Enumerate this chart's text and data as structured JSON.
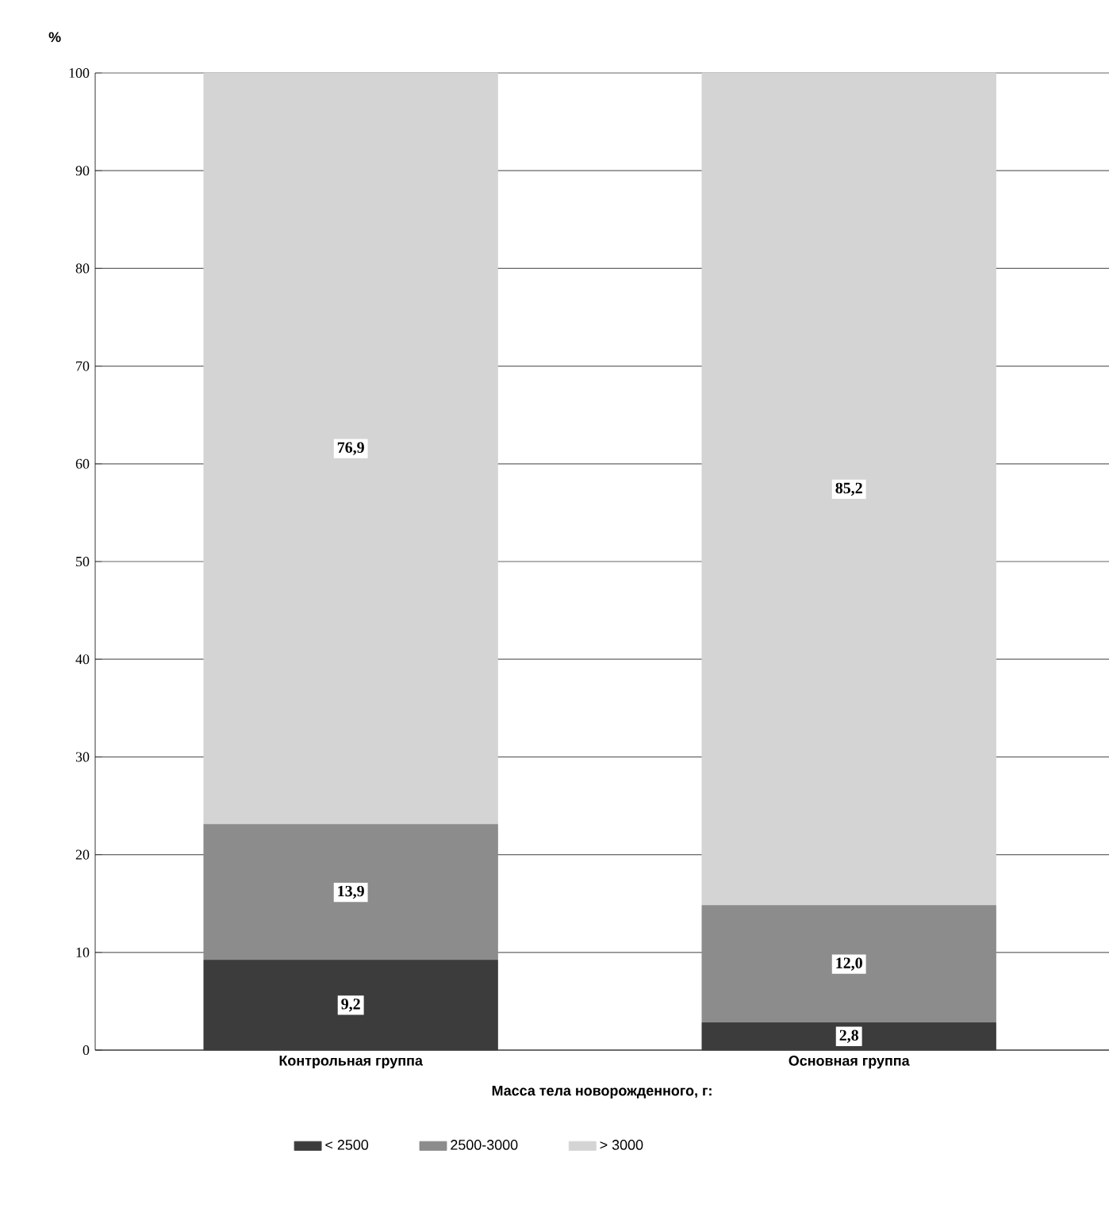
{
  "chart_data": {
    "type": "bar",
    "stacked": true,
    "ylabel": "%",
    "xlabel": "Масса тела новорожденного, г:",
    "categories": [
      "Контрольная группа",
      "Основная группа"
    ],
    "series": [
      {
        "name": "< 2500",
        "color": "#3c3c3c",
        "values": [
          9.2,
          2.8
        ],
        "value_labels": [
          "9,2",
          "2,8"
        ]
      },
      {
        "name": "2500-3000",
        "color": "#8c8c8c",
        "values": [
          13.9,
          12.0
        ],
        "value_labels": [
          "13,9",
          "12,0"
        ]
      },
      {
        "name": "> 3000",
        "color": "#d4d4d4",
        "values": [
          76.9,
          85.2
        ],
        "value_labels": [
          "76,9",
          "85,2"
        ]
      }
    ],
    "ylim": [
      0,
      100
    ],
    "yticks": [
      0,
      10,
      20,
      30,
      40,
      50,
      60,
      70,
      80,
      90,
      100
    ],
    "grid": "y",
    "legend": "bottom"
  }
}
